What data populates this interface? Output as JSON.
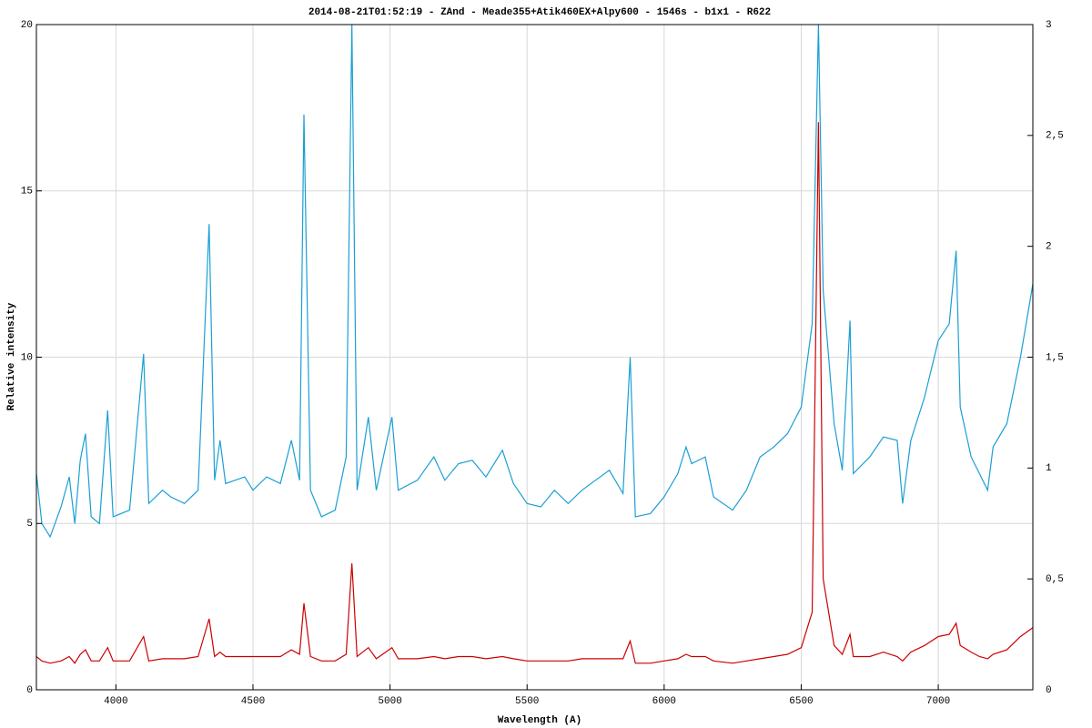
{
  "chart_data": {
    "type": "line",
    "title": "2014-08-21T01:52:19 - ZAnd - Meade355+Atik460EX+Alpy600 - 1546s - b1x1 - R622",
    "xlabel": "Wavelength (A)",
    "ylabel": "Relative intensity",
    "x": [
      3710,
      3730,
      3760,
      3800,
      3830,
      3850,
      3870,
      3889,
      3910,
      3940,
      3970,
      3990,
      4050,
      4101,
      4120,
      4170,
      4200,
      4250,
      4300,
      4340,
      4360,
      4380,
      4400,
      4470,
      4500,
      4550,
      4600,
      4640,
      4670,
      4686,
      4710,
      4750,
      4800,
      4840,
      4861,
      4880,
      4921,
      4950,
      5007,
      5030,
      5100,
      5160,
      5200,
      5250,
      5300,
      5350,
      5410,
      5450,
      5500,
      5550,
      5600,
      5650,
      5700,
      5750,
      5800,
      5850,
      5876,
      5895,
      5950,
      6000,
      6050,
      6080,
      6100,
      6150,
      6180,
      6250,
      6300,
      6350,
      6400,
      6450,
      6500,
      6540,
      6563,
      6580,
      6620,
      6650,
      6678,
      6690,
      6750,
      6800,
      6850,
      6870,
      6900,
      6950,
      7000,
      7040,
      7065,
      7080,
      7120,
      7150,
      7180,
      7200,
      7250,
      7300,
      7345
    ],
    "series": [
      {
        "color": "#1a9fd4",
        "values": [
          6.5,
          5.0,
          4.6,
          5.5,
          6.4,
          5.0,
          6.9,
          7.7,
          5.2,
          5.0,
          8.4,
          5.2,
          5.4,
          10.1,
          5.6,
          6.0,
          5.8,
          5.6,
          6.0,
          14.0,
          6.3,
          7.5,
          6.2,
          6.4,
          6.0,
          6.4,
          6.2,
          7.5,
          6.3,
          17.3,
          6.0,
          5.2,
          5.4,
          7.0,
          20,
          6.0,
          8.2,
          6.0,
          8.2,
          6.0,
          6.3,
          7.0,
          6.3,
          6.8,
          6.9,
          6.4,
          7.2,
          6.2,
          5.6,
          5.5,
          6.0,
          5.6,
          6.0,
          6.3,
          6.6,
          5.9,
          10.0,
          5.2,
          5.3,
          5.8,
          6.5,
          7.3,
          6.8,
          7.0,
          5.8,
          5.4,
          6.0,
          7.0,
          7.3,
          7.7,
          8.5,
          11.0,
          20,
          12.0,
          8.0,
          6.6,
          11.1,
          6.5,
          7.0,
          7.6,
          7.5,
          5.6,
          7.5,
          8.8,
          10.5,
          11.0,
          13.2,
          8.5,
          7.0,
          6.5,
          6.0,
          7.3,
          8.0,
          10.0,
          12.2
        ]
      },
      {
        "color": "#cc0000",
        "axis": "y2",
        "values": [
          0.15,
          0.13,
          0.12,
          0.13,
          0.15,
          0.12,
          0.16,
          0.18,
          0.13,
          0.13,
          0.19,
          0.13,
          0.13,
          0.24,
          0.13,
          0.14,
          0.14,
          0.14,
          0.15,
          0.32,
          0.15,
          0.17,
          0.15,
          0.15,
          0.15,
          0.15,
          0.15,
          0.18,
          0.16,
          0.39,
          0.15,
          0.13,
          0.13,
          0.16,
          0.57,
          0.15,
          0.19,
          0.14,
          0.19,
          0.14,
          0.14,
          0.15,
          0.14,
          0.15,
          0.15,
          0.14,
          0.15,
          0.14,
          0.13,
          0.13,
          0.13,
          0.13,
          0.14,
          0.14,
          0.14,
          0.14,
          0.22,
          0.12,
          0.12,
          0.13,
          0.14,
          0.16,
          0.15,
          0.15,
          0.13,
          0.12,
          0.13,
          0.14,
          0.15,
          0.16,
          0.19,
          0.35,
          2.56,
          0.5,
          0.2,
          0.16,
          0.25,
          0.15,
          0.15,
          0.17,
          0.15,
          0.13,
          0.17,
          0.2,
          0.24,
          0.25,
          0.3,
          0.2,
          0.17,
          0.15,
          0.14,
          0.16,
          0.18,
          0.24,
          0.28
        ]
      }
    ],
    "xlim": [
      3710,
      7345
    ],
    "xticks": [
      4000,
      4500,
      5000,
      5500,
      6000,
      6500,
      7000
    ],
    "ylim": [
      0,
      20
    ],
    "yticks": [
      0,
      5,
      10,
      15,
      20
    ],
    "y2lim": [
      0,
      3
    ],
    "y2ticks": [
      0,
      {
        "value": 0.5,
        "label": "0,5"
      },
      1,
      {
        "value": 1.5,
        "label": "1,5"
      },
      2,
      {
        "value": 2.5,
        "label": "2,5"
      },
      3
    ],
    "grid": true
  }
}
